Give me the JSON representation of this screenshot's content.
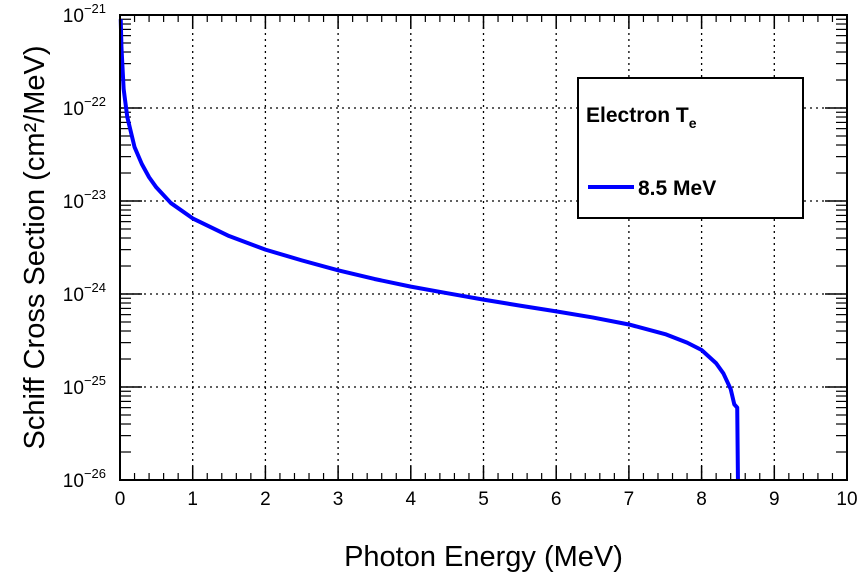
{
  "chart_data": {
    "type": "line",
    "title": "",
    "xlabel": "Photon Energy (MeV)",
    "ylabel": "Schiff Cross Section (cm²/MeV)",
    "xlim": [
      0,
      10
    ],
    "ylim": [
      1e-26,
      1e-21
    ],
    "yscale": "log",
    "grid": true,
    "x_ticks": [
      0,
      1,
      2,
      3,
      4,
      5,
      6,
      7,
      8,
      9,
      10
    ],
    "y_tick_exponents": [
      -26,
      -25,
      -24,
      -23,
      -22,
      -21
    ],
    "y_tick_base": "10",
    "legend": {
      "placement": "top-right",
      "header": "Electron T",
      "header_subscript": "e",
      "entries": [
        "8.5 MeV"
      ]
    },
    "series": [
      {
        "name": "8.5 MeV",
        "color": "#0000ff",
        "x": [
          0.01,
          0.02,
          0.05,
          0.1,
          0.2,
          0.3,
          0.4,
          0.5,
          0.7,
          1.0,
          1.5,
          2.0,
          2.5,
          3.0,
          3.5,
          4.0,
          4.5,
          5.0,
          5.5,
          6.0,
          6.5,
          7.0,
          7.5,
          7.8,
          8.0,
          8.2,
          8.3,
          8.4,
          8.45,
          8.49,
          8.5
        ],
        "y": [
          9e-22,
          4.5e-22,
          1.6e-22,
          8e-23,
          3.8e-23,
          2.5e-23,
          1.8e-23,
          1.4e-23,
          9.5e-24,
          6.5e-24,
          4.2e-24,
          3e-24,
          2.3e-24,
          1.8e-24,
          1.45e-24,
          1.2e-24,
          1.02e-24,
          8.7e-25,
          7.5e-25,
          6.5e-25,
          5.6e-25,
          4.7e-25,
          3.7e-25,
          3e-25,
          2.5e-25,
          1.8e-25,
          1.4e-25,
          9.5e-26,
          6.5e-26,
          6e-26,
          1e-26
        ]
      }
    ]
  }
}
